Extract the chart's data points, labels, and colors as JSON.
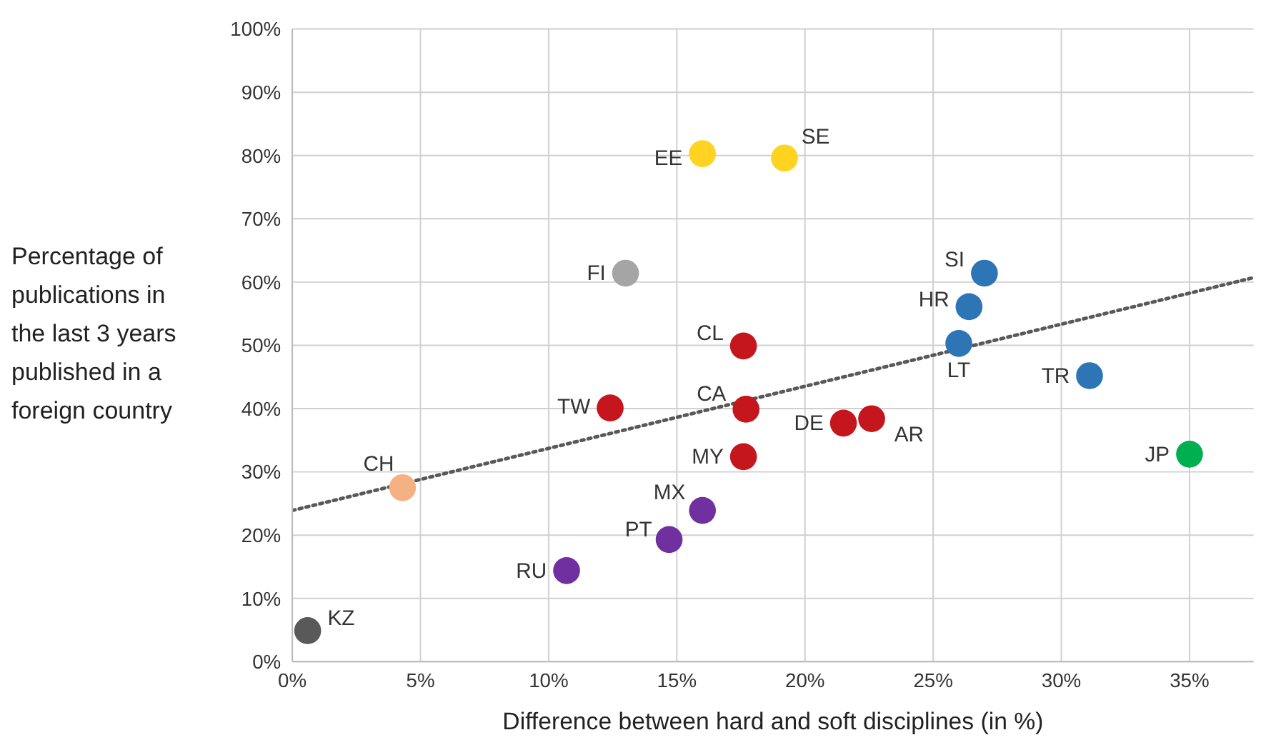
{
  "chart_data": {
    "type": "scatter",
    "xlabel": "Difference between hard and soft disciplines (in %)",
    "ylabel": "Percentage of publications in the last 3 years published in a foreign country",
    "xlim": [
      0,
      37.5
    ],
    "ylim": [
      0,
      100
    ],
    "xticks": [
      {
        "value": 0,
        "label": "0%"
      },
      {
        "value": 5,
        "label": "5%"
      },
      {
        "value": 10,
        "label": "10%"
      },
      {
        "value": 15,
        "label": "15%"
      },
      {
        "value": 20,
        "label": "20%"
      },
      {
        "value": 25,
        "label": "25%"
      },
      {
        "value": 30,
        "label": "30%"
      },
      {
        "value": 35,
        "label": "35%"
      }
    ],
    "yticks": [
      {
        "value": 0,
        "label": "0%"
      },
      {
        "value": 10,
        "label": "10%"
      },
      {
        "value": 20,
        "label": "20%"
      },
      {
        "value": 30,
        "label": "30%"
      },
      {
        "value": 40,
        "label": "40%"
      },
      {
        "value": 50,
        "label": "50%"
      },
      {
        "value": 60,
        "label": "60%"
      },
      {
        "value": 70,
        "label": "70%"
      },
      {
        "value": 80,
        "label": "80%"
      },
      {
        "value": 90,
        "label": "90%"
      },
      {
        "value": 100,
        "label": "100%"
      }
    ],
    "grid": true,
    "marker": "circle",
    "series": [
      {
        "x": [
          16.0,
          19.2,
          13.0,
          27.0,
          26.4,
          26.0,
          17.6,
          12.4,
          17.7,
          31.1,
          21.5,
          22.6,
          17.6,
          35.0,
          4.3,
          16.0,
          14.7,
          10.7,
          0.6
        ],
        "values": [
          80.3,
          79.6,
          61.4,
          61.4,
          56.1,
          50.3,
          49.9,
          40.1,
          39.9,
          45.2,
          37.7,
          38.4,
          32.4,
          32.8,
          27.5,
          23.9,
          19.3,
          14.4,
          4.9
        ],
        "colors": [
          "#ffd320",
          "#ffd320",
          "#a5a5a5",
          "#2e75b6",
          "#2e75b6",
          "#2e75b6",
          "#c5161d",
          "#c5161d",
          "#c5161d",
          "#2e75b6",
          "#c5161d",
          "#c5161d",
          "#c5161d",
          "#00b050",
          "#f4b183",
          "#7030a0",
          "#7030a0",
          "#7030a0",
          "#595959"
        ]
      },
      {
        "type": "line",
        "x": [
          0,
          37.5
        ],
        "values": [
          23.9,
          60.7
        ],
        "color": "#595959",
        "line_style": "dotted",
        "marker": "none"
      }
    ],
    "annotations": [
      {
        "text": "EE",
        "x": 16.0,
        "y": 80.3
      },
      {
        "text": "SE",
        "x": 19.2,
        "y": 79.6
      },
      {
        "text": "FI",
        "x": 13.0,
        "y": 61.4
      },
      {
        "text": "SI",
        "x": 27.0,
        "y": 61.4
      },
      {
        "text": "HR",
        "x": 26.4,
        "y": 56.1
      },
      {
        "text": "LT",
        "x": 26.0,
        "y": 50.3
      },
      {
        "text": "CL",
        "x": 17.6,
        "y": 49.9
      },
      {
        "text": "TW",
        "x": 12.4,
        "y": 40.1
      },
      {
        "text": "CA",
        "x": 17.7,
        "y": 39.9
      },
      {
        "text": "TR",
        "x": 31.1,
        "y": 45.2
      },
      {
        "text": "DE",
        "x": 21.5,
        "y": 37.7
      },
      {
        "text": "AR",
        "x": 22.6,
        "y": 38.4
      },
      {
        "text": "MY",
        "x": 17.6,
        "y": 32.4
      },
      {
        "text": "JP",
        "x": 35.0,
        "y": 32.8
      },
      {
        "text": "CH",
        "x": 4.3,
        "y": 27.5
      },
      {
        "text": "MX",
        "x": 16.0,
        "y": 23.9
      },
      {
        "text": "PT",
        "x": 14.7,
        "y": 19.3
      },
      {
        "text": "RU",
        "x": 10.7,
        "y": 14.4
      },
      {
        "text": "KZ",
        "x": 0.6,
        "y": 4.9
      }
    ]
  }
}
